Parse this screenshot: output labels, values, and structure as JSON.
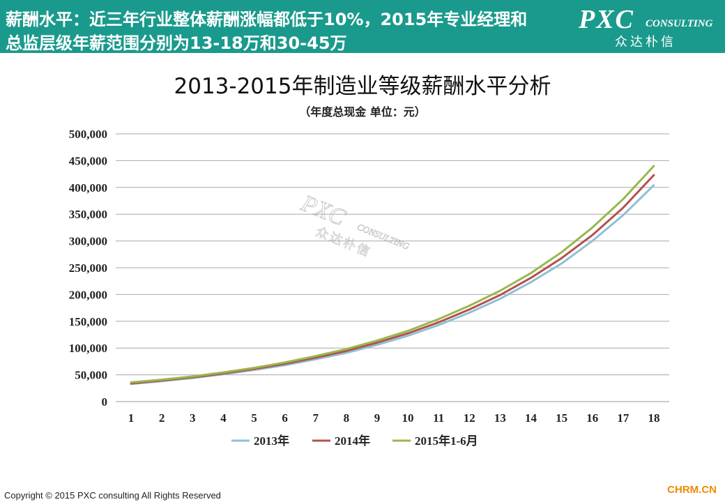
{
  "header": {
    "line1": "薪酬水平：近三年行业整体薪酬涨幅都低于10%，2015年专业经理和",
    "line2": "总监层级年薪范围分别为13-18万和30-45万",
    "bg_color": "#1a9a8c"
  },
  "logo": {
    "brand": "PXC",
    "sub": "CONSULTING",
    "cn": "众达朴信"
  },
  "watermark": {
    "brand": "PXC",
    "sub": "CONSULTING",
    "cn": "众达朴信"
  },
  "footer": {
    "copyright": "Copyright © 2015  PXC consulting All Rights Reserved",
    "site": "CHRM.CN"
  },
  "chart_data": {
    "type": "line",
    "title": "2013-2015年制造业等级薪酬水平分析",
    "subtitle": "（年度总现金  单位：元）",
    "xlabel": "",
    "ylabel": "",
    "ylim": [
      0,
      500000
    ],
    "yticks": [
      "0",
      "50,000",
      "100,000",
      "150,000",
      "200,000",
      "250,000",
      "300,000",
      "350,000",
      "400,000",
      "450,000",
      "500,000"
    ],
    "categories": [
      "1",
      "2",
      "3",
      "4",
      "5",
      "6",
      "7",
      "8",
      "9",
      "10",
      "11",
      "12",
      "13",
      "14",
      "15",
      "16",
      "17",
      "18"
    ],
    "grid": "horizontal",
    "legend_position": "bottom",
    "series": [
      {
        "name": "2013年",
        "color": "#8ec0d4",
        "values": [
          33000,
          38000,
          44000,
          51000,
          59000,
          68000,
          79000,
          91000,
          106000,
          123000,
          143000,
          166000,
          192000,
          223000,
          258000,
          300000,
          348000,
          404000
        ]
      },
      {
        "name": "2014年",
        "color": "#b5504d",
        "values": [
          34000,
          39500,
          45500,
          52500,
          61000,
          70500,
          82000,
          94500,
          110000,
          127500,
          148000,
          172000,
          199000,
          231000,
          268000,
          311000,
          362000,
          423000
        ]
      },
      {
        "name": "2015年1-6月",
        "color": "#98b84e",
        "values": [
          36000,
          41000,
          47000,
          54500,
          63000,
          73000,
          85000,
          98000,
          114000,
          132000,
          154000,
          179000,
          207000,
          240000,
          279000,
          325000,
          378000,
          440000
        ]
      }
    ]
  }
}
